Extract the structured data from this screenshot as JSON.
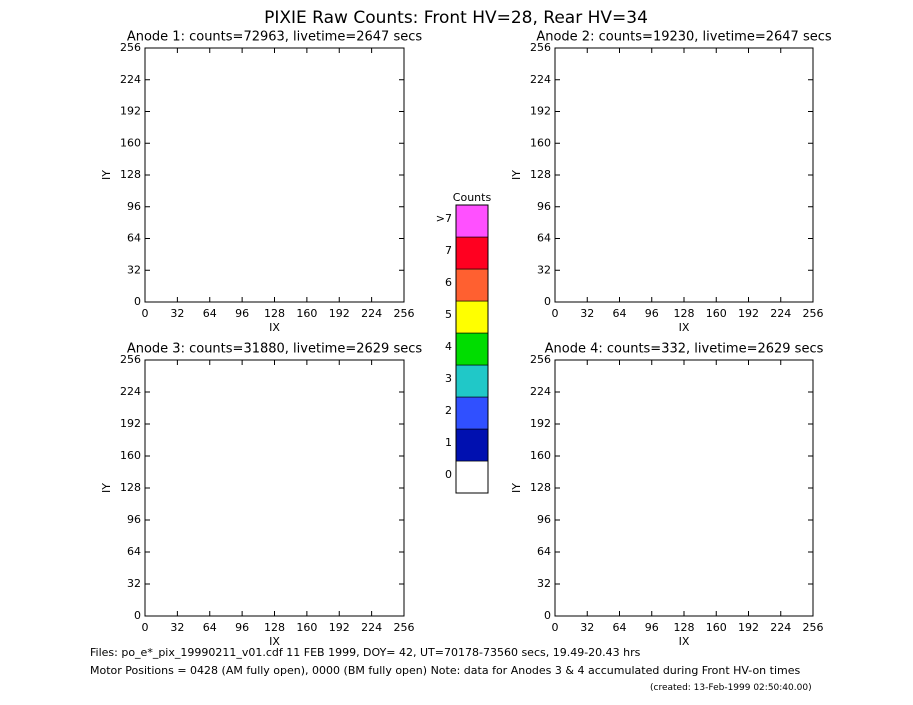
{
  "title": "PIXIE Raw Counts:  Front HV=28, Rear HV=34",
  "chart_data": [
    {
      "type": "heatmap",
      "title": "Anode 1: counts=72963, livetime=2647 secs",
      "x_label": "IX",
      "y_label": "IY",
      "xlim": [
        0,
        256
      ],
      "ylim": [
        0,
        256
      ],
      "xticks": [
        0,
        32,
        64,
        96,
        128,
        160,
        192,
        224,
        256
      ],
      "yticks": [
        0,
        32,
        64,
        96,
        128,
        160,
        192,
        224,
        256
      ]
    },
    {
      "type": "heatmap",
      "title": "Anode 2: counts=19230, livetime=2647 secs",
      "x_label": "IX",
      "y_label": "IY",
      "xlim": [
        0,
        256
      ],
      "ylim": [
        0,
        256
      ],
      "xticks": [
        0,
        32,
        64,
        96,
        128,
        160,
        192,
        224,
        256
      ],
      "yticks": [
        0,
        32,
        64,
        96,
        128,
        160,
        192,
        224,
        256
      ]
    },
    {
      "type": "heatmap",
      "title": "Anode 3: counts=31880, livetime=2629 secs",
      "x_label": "IX",
      "y_label": "IY",
      "xlim": [
        0,
        256
      ],
      "ylim": [
        0,
        256
      ],
      "xticks": [
        0,
        32,
        64,
        96,
        128,
        160,
        192,
        224,
        256
      ],
      "yticks": [
        0,
        32,
        64,
        96,
        128,
        160,
        192,
        224,
        256
      ]
    },
    {
      "type": "heatmap",
      "title": "Anode 4: counts=332, livetime=2629 secs",
      "x_label": "IX",
      "y_label": "IY",
      "xlim": [
        0,
        256
      ],
      "ylim": [
        0,
        256
      ],
      "xticks": [
        0,
        32,
        64,
        96,
        128,
        160,
        192,
        224,
        256
      ],
      "yticks": [
        0,
        32,
        64,
        96,
        128,
        160,
        192,
        224,
        256
      ]
    }
  ],
  "colorbar": {
    "title": "Counts",
    "levels": [
      {
        "label": "0",
        "color": "#ffffff"
      },
      {
        "label": "1",
        "color": "#0010b0"
      },
      {
        "label": "2",
        "color": "#3050ff"
      },
      {
        "label": "3",
        "color": "#20c8c8"
      },
      {
        "label": "4",
        "color": "#00dd00"
      },
      {
        "label": "5",
        "color": "#ffff00"
      },
      {
        "label": "6",
        "color": "#ff6030"
      },
      {
        "label": "7",
        "color": "#ff0020"
      },
      {
        "label": ">7",
        "color": "#ff50ff"
      }
    ]
  },
  "footer": {
    "files": "Files: po_e*_pix_19990211_v01.cdf    11 FEB 1999, DOY= 42, UT=70178-73560 secs, 19.49-20.43 hrs",
    "motor": "Motor Positions = 0428 (AM fully open), 0000 (BM fully open)    Note: data for Anodes 3 & 4 accumulated during Front HV-on times",
    "created": "(created: 13-Feb-1999 02:50:40.00)"
  }
}
